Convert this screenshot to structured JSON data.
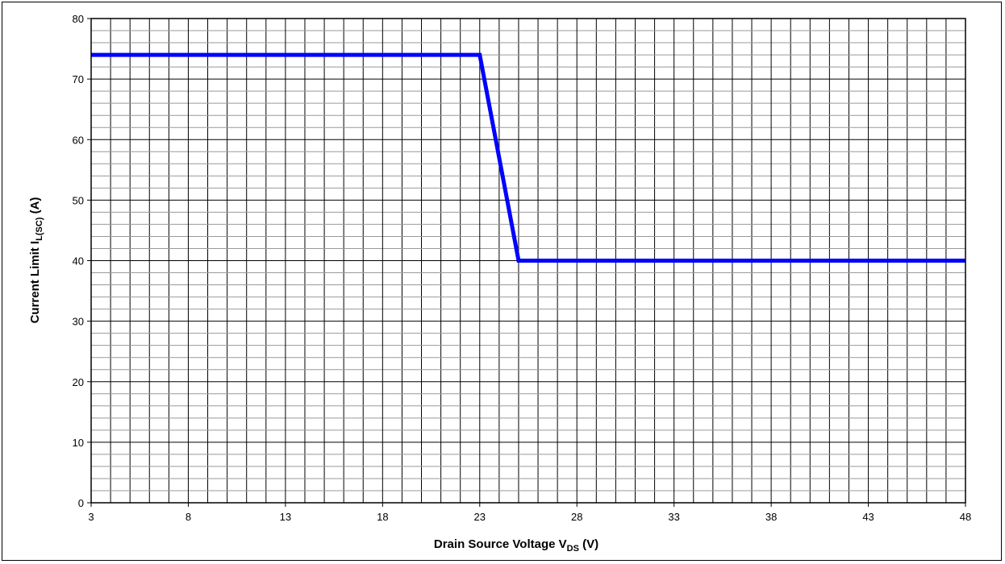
{
  "chart_data": {
    "type": "line",
    "title": "",
    "xlabel": {
      "main": "Drain Source Voltage V",
      "sub": "DS",
      "tail": " (V)"
    },
    "ylabel": {
      "main": "Current Limit I",
      "sub": "L(SC)",
      "tail": " (A)"
    },
    "xlim": [
      3,
      48
    ],
    "ylim": [
      0,
      80
    ],
    "x_ticks": [
      3,
      8,
      13,
      18,
      23,
      28,
      33,
      38,
      43,
      48
    ],
    "y_ticks": [
      0,
      10,
      20,
      30,
      40,
      50,
      60,
      70,
      80
    ],
    "x_minor_step": 1,
    "y_minor_step": 2,
    "grid": true,
    "series": [
      {
        "color": "#0000ff",
        "x": [
          3,
          23,
          25,
          48
        ],
        "y": [
          74,
          74,
          40,
          40
        ]
      }
    ]
  },
  "colors": {
    "grid_major": "#000000",
    "grid_minor": "#999999",
    "line": "#0000ff"
  }
}
